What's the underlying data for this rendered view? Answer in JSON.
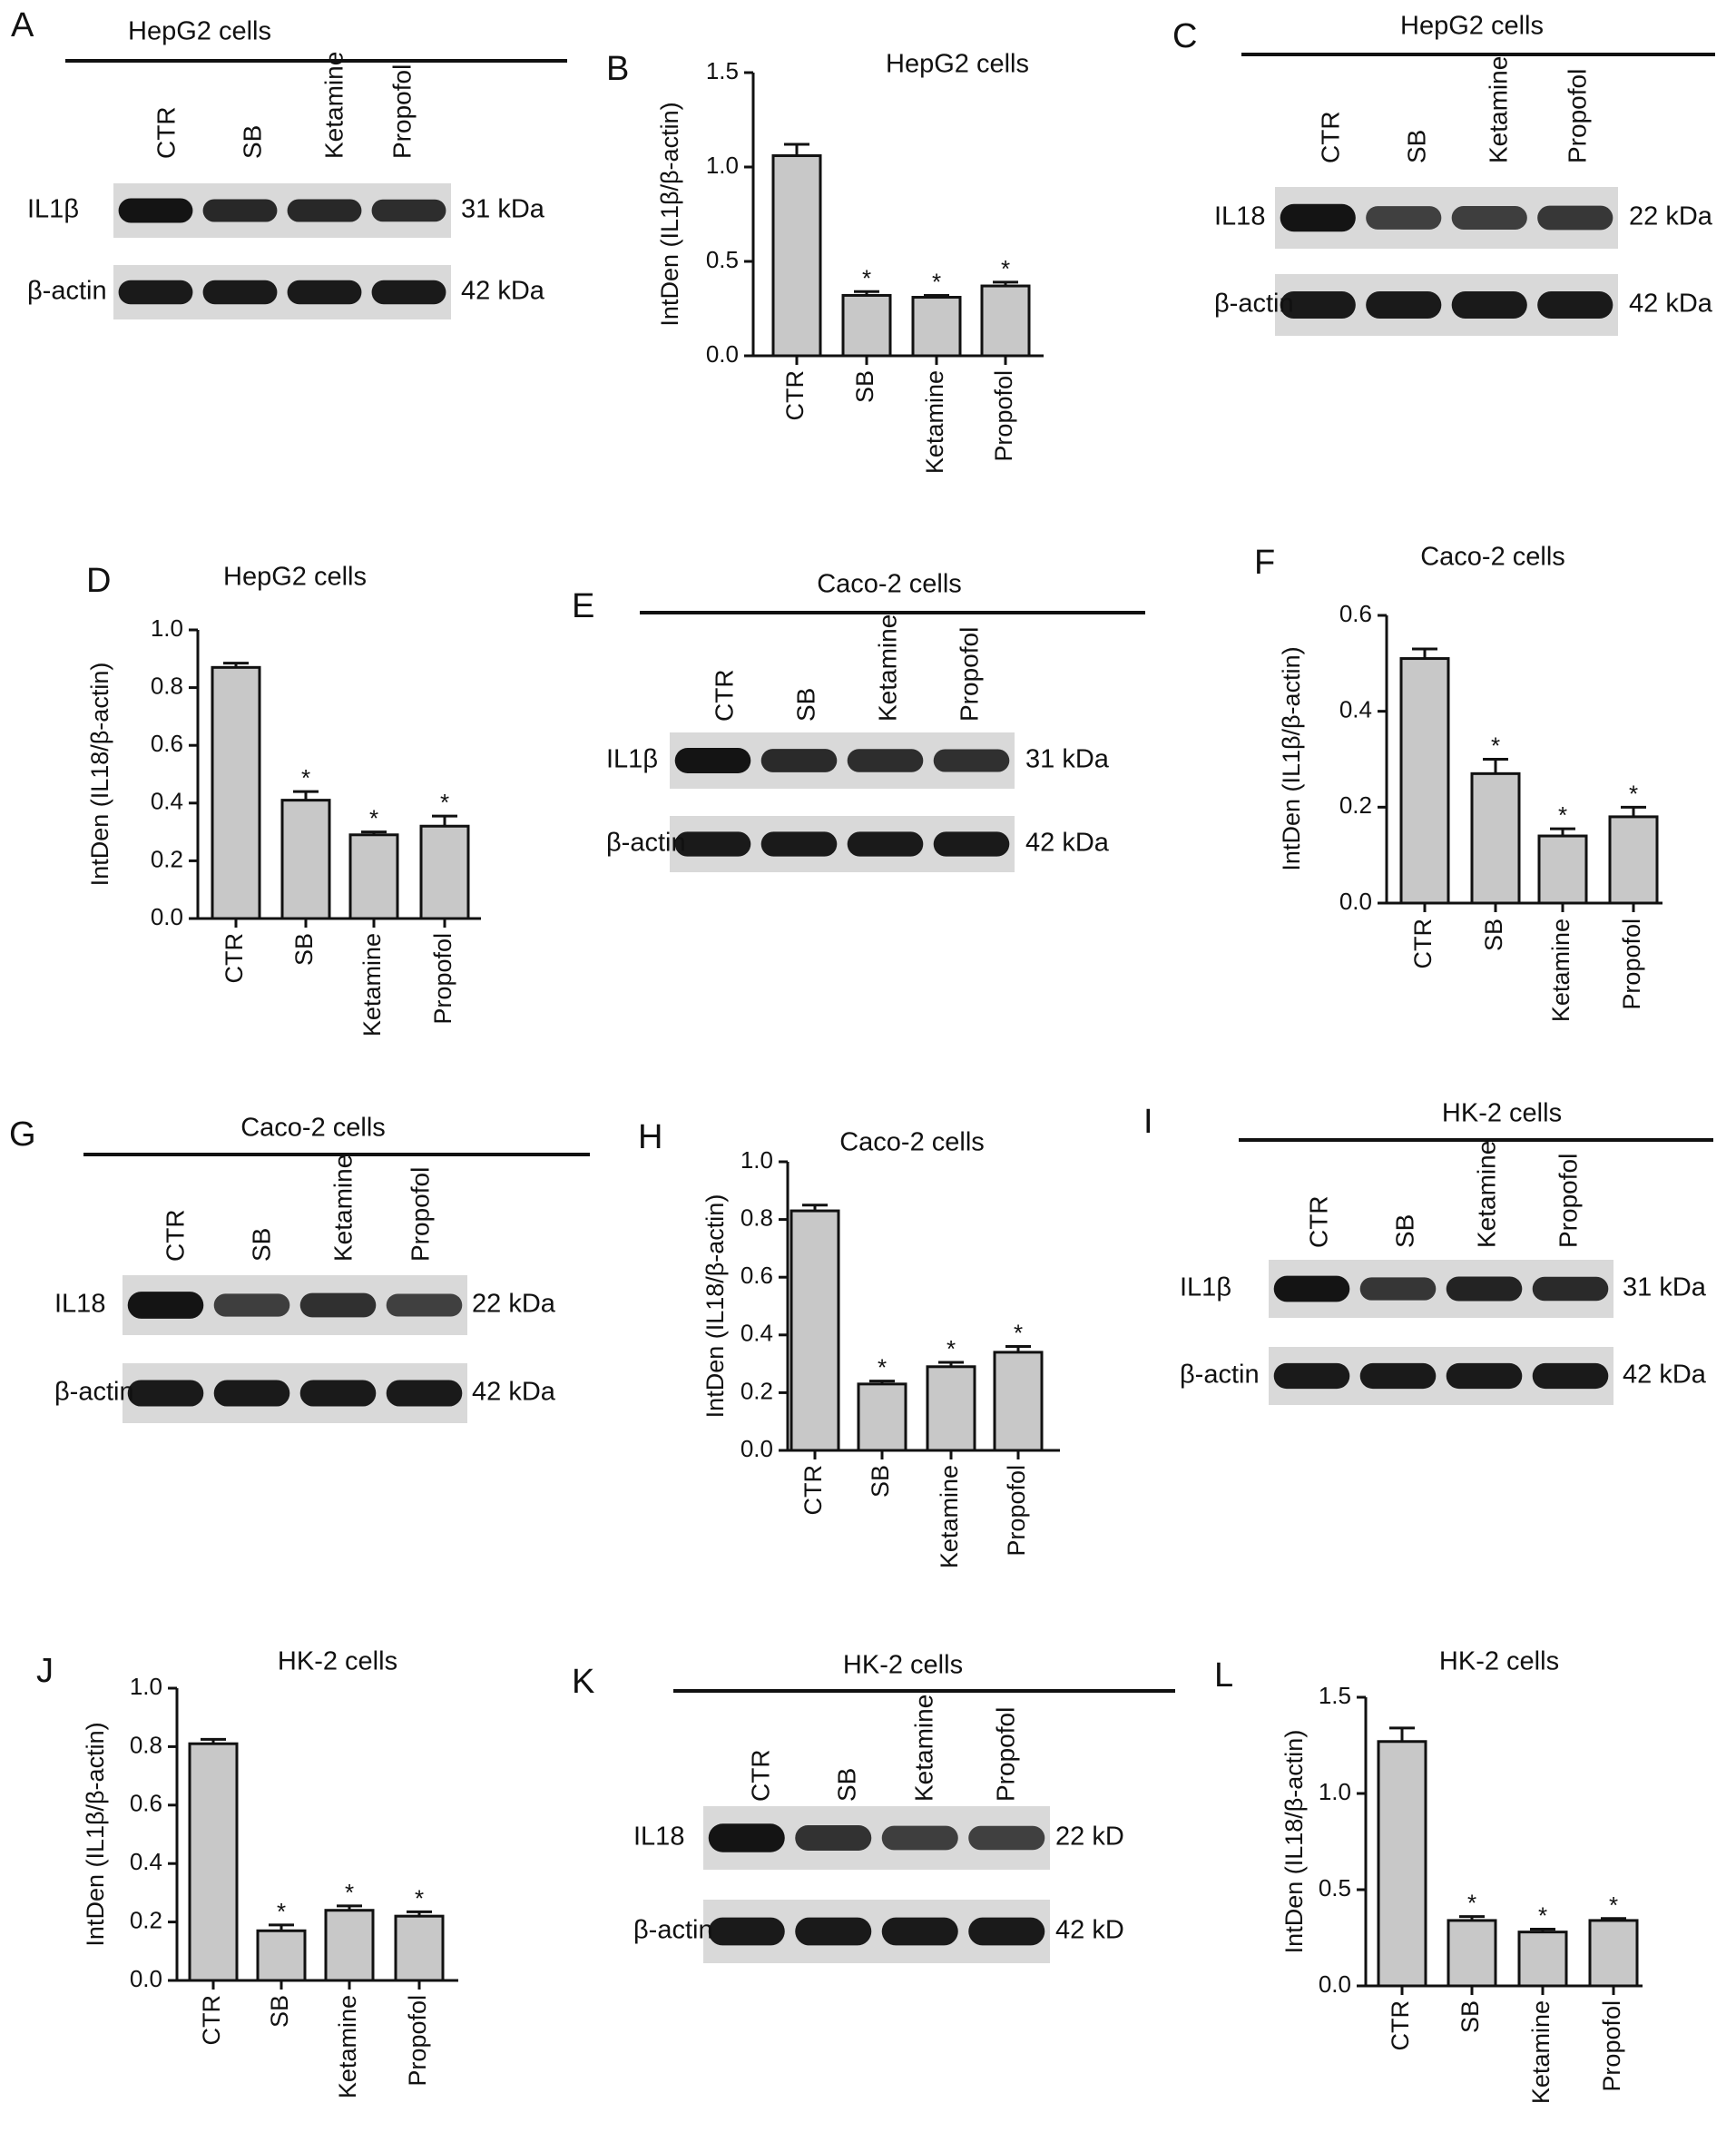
{
  "panels": [
    {
      "id": "A",
      "kind": "blot",
      "letter": "A",
      "title": "HepG2 cells",
      "lanes": [
        "CTR",
        "SB",
        "Ketamine",
        "Propofol"
      ],
      "rows": [
        {
          "label": "IL1β",
          "size": "31 kDa",
          "bands": [
            1.0,
            0.82,
            0.82,
            0.78
          ]
        },
        {
          "label": "β-actin",
          "size": "42 kDa",
          "bands": [
            0.95,
            0.95,
            0.95,
            0.95
          ]
        }
      ]
    },
    {
      "id": "B",
      "kind": "chart",
      "letter": "B"
    },
    {
      "id": "C",
      "kind": "blot",
      "letter": "C",
      "title": "HepG2 cells",
      "lanes": [
        "CTR",
        "SB",
        "Ketamine",
        "Propofol"
      ],
      "rows": [
        {
          "label": "IL18",
          "size": "22 kDa",
          "bands": [
            1.0,
            0.6,
            0.62,
            0.68
          ]
        },
        {
          "label": "β-actin",
          "size": "42 kDa",
          "bands": [
            0.95,
            0.95,
            0.95,
            0.95
          ]
        }
      ]
    },
    {
      "id": "D",
      "kind": "chart",
      "letter": "D"
    },
    {
      "id": "E",
      "kind": "blot",
      "letter": "E",
      "title": "Caco-2 cells",
      "lanes": [
        "CTR",
        "SB",
        "Ketamine",
        "Propofol"
      ],
      "rows": [
        {
          "label": "IL1β",
          "size": "31 kDa",
          "bands": [
            1.0,
            0.8,
            0.78,
            0.75
          ]
        },
        {
          "label": "β-actin",
          "size": "42 kDa",
          "bands": [
            0.95,
            0.95,
            0.95,
            0.95
          ]
        }
      ]
    },
    {
      "id": "F",
      "kind": "chart",
      "letter": "F"
    },
    {
      "id": "G",
      "kind": "blot",
      "letter": "G",
      "title": "Caco-2 cells",
      "lanes": [
        "CTR",
        "SB",
        "Ketamine",
        "Propofol"
      ],
      "rows": [
        {
          "label": "IL18",
          "size": "22 kDa",
          "bands": [
            1.0,
            0.62,
            0.75,
            0.6
          ]
        },
        {
          "label": "β-actin",
          "size": "42 kDa",
          "bands": [
            0.95,
            0.95,
            0.95,
            0.95
          ]
        }
      ]
    },
    {
      "id": "H",
      "kind": "chart",
      "letter": "H"
    },
    {
      "id": "I",
      "kind": "blot",
      "letter": "I",
      "title": "HK-2 cells",
      "lanes": [
        "CTR",
        "SB",
        "Ketamine",
        "Propofol"
      ],
      "rows": [
        {
          "label": "IL1β",
          "size": "31 kDa",
          "bands": [
            1.0,
            0.7,
            0.85,
            0.8
          ]
        },
        {
          "label": "β-actin",
          "size": "42 kDa",
          "bands": [
            0.95,
            0.95,
            0.95,
            0.95
          ]
        }
      ]
    },
    {
      "id": "J",
      "kind": "chart",
      "letter": "J"
    },
    {
      "id": "K",
      "kind": "blot",
      "letter": "K",
      "title": "HK-2 cells",
      "lanes": [
        "CTR",
        "SB",
        "Ketamine",
        "Propofol"
      ],
      "rows": [
        {
          "label": "IL18",
          "size": "22 kD",
          "bands": [
            1.0,
            0.72,
            0.62,
            0.6
          ]
        },
        {
          "label": "β-actin",
          "size": "42 kD",
          "bands": [
            0.95,
            0.95,
            0.95,
            0.95
          ]
        }
      ]
    },
    {
      "id": "L",
      "kind": "chart",
      "letter": "L"
    }
  ],
  "colors": {
    "bar": "#c8c8c8",
    "axis": "#111111",
    "text": "#111111",
    "blot_bg": "#d9d9d9",
    "band": "#141414"
  },
  "chart_data": [
    {
      "panel": "B",
      "type": "bar",
      "title": "HepG2 cells",
      "ylabel": "IntDen (IL1β/β-actin)",
      "categories": [
        "CTR",
        "SB",
        "Ketamine",
        "Propofol"
      ],
      "values": [
        1.06,
        0.32,
        0.31,
        0.37
      ],
      "errors": [
        0.06,
        0.02,
        0.01,
        0.02
      ],
      "significant": [
        false,
        true,
        true,
        true
      ],
      "ylim": [
        0,
        1.5
      ],
      "yticks": [
        0.0,
        0.5,
        1.0,
        1.5
      ],
      "tick_labels": [
        "0.0",
        "0.5",
        "1.0",
        "1.5"
      ]
    },
    {
      "panel": "D",
      "type": "bar",
      "title": "HepG2 cells",
      "ylabel": "IntDen (IL18/β-actin)",
      "categories": [
        "CTR",
        "SB",
        "Ketamine",
        "Propofol"
      ],
      "values": [
        0.87,
        0.41,
        0.29,
        0.32
      ],
      "errors": [
        0.015,
        0.03,
        0.01,
        0.035
      ],
      "significant": [
        false,
        true,
        true,
        true
      ],
      "ylim": [
        0,
        1.0
      ],
      "yticks": [
        0.0,
        0.2,
        0.4,
        0.6,
        0.8,
        1.0
      ],
      "tick_labels": [
        "0.0",
        "0.2",
        "0.4",
        "0.6",
        "0.8",
        "1.0"
      ]
    },
    {
      "panel": "F",
      "type": "bar",
      "title": "Caco-2 cells",
      "ylabel": "IntDen (IL1β/β-actin)",
      "categories": [
        "CTR",
        "SB",
        "Ketamine",
        "Propofol"
      ],
      "values": [
        0.51,
        0.27,
        0.14,
        0.18
      ],
      "errors": [
        0.02,
        0.03,
        0.015,
        0.02
      ],
      "significant": [
        false,
        true,
        true,
        true
      ],
      "ylim": [
        0,
        0.6
      ],
      "yticks": [
        0.0,
        0.2,
        0.4,
        0.6
      ],
      "tick_labels": [
        "0.0",
        "0.2",
        "0.4",
        "0.6"
      ]
    },
    {
      "panel": "H",
      "type": "bar",
      "title": "Caco-2 cells",
      "ylabel": "IntDen (IL18/β-actin)",
      "categories": [
        "CTR",
        "SB",
        "Ketamine",
        "Propofol"
      ],
      "values": [
        0.83,
        0.23,
        0.29,
        0.34
      ],
      "errors": [
        0.02,
        0.01,
        0.015,
        0.02
      ],
      "significant": [
        false,
        true,
        true,
        true
      ],
      "ylim": [
        0,
        1.0
      ],
      "yticks": [
        0.0,
        0.2,
        0.4,
        0.6,
        0.8,
        1.0
      ],
      "tick_labels": [
        "0.0",
        "0.2",
        "0.4",
        "0.6",
        "0.8",
        "1.0"
      ]
    },
    {
      "panel": "J",
      "type": "bar",
      "title": "HK-2 cells",
      "ylabel": "IntDen (IL1β/β-actin)",
      "categories": [
        "CTR",
        "SB",
        "Ketamine",
        "Propofol"
      ],
      "values": [
        0.81,
        0.17,
        0.24,
        0.22
      ],
      "errors": [
        0.015,
        0.02,
        0.015,
        0.015
      ],
      "significant": [
        false,
        true,
        true,
        true
      ],
      "ylim": [
        0,
        1.0
      ],
      "yticks": [
        0.0,
        0.2,
        0.4,
        0.6,
        0.8,
        1.0
      ],
      "tick_labels": [
        "0.0",
        "0.2",
        "0.4",
        "0.6",
        "0.8",
        "1.0"
      ]
    },
    {
      "panel": "L",
      "type": "bar",
      "title": "HK-2 cells",
      "ylabel": "IntDen (IL18/β-actin)",
      "categories": [
        "CTR",
        "SB",
        "Ketamine",
        "Propofol"
      ],
      "values": [
        1.27,
        0.34,
        0.28,
        0.34
      ],
      "errors": [
        0.07,
        0.02,
        0.015,
        0.01
      ],
      "significant": [
        false,
        true,
        true,
        true
      ],
      "ylim": [
        0,
        1.5
      ],
      "yticks": [
        0.0,
        0.5,
        1.0,
        1.5
      ],
      "tick_labels": [
        "0.0",
        "0.5",
        "1.0",
        "1.5"
      ]
    }
  ]
}
